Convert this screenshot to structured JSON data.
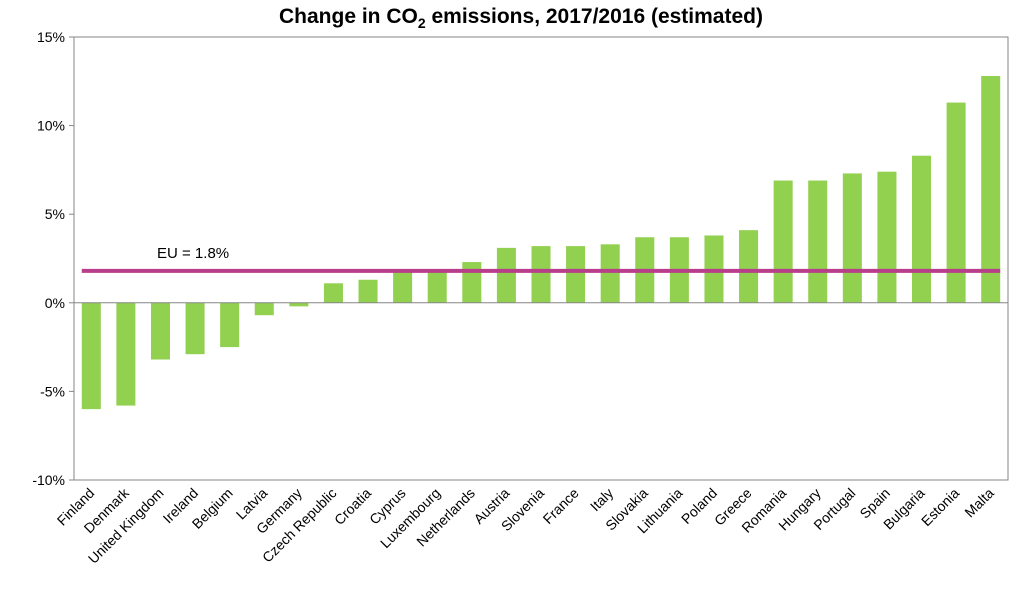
{
  "chart_data": {
    "type": "bar",
    "title": {
      "prefix": "Change in CO",
      "subscript": "2",
      "suffix": " emissions, 2017/2016 (estimated)"
    },
    "xlabel": "",
    "ylabel": "",
    "ylim": [
      -10,
      15
    ],
    "y_ticks": [
      -10,
      -5,
      0,
      5,
      10,
      15
    ],
    "y_tick_labels": [
      "-10%",
      "-5%",
      "0%",
      "5%",
      "10%",
      "15%"
    ],
    "grid": false,
    "categories": [
      "Finland",
      "Denmark",
      "United Kingdom",
      "Ireland",
      "Belgium",
      "Latvia",
      "Germany",
      "Czech Republic",
      "Croatia",
      "Cyprus",
      "Luxembourg",
      "Netherlands",
      "Austria",
      "Slovenia",
      "France",
      "Italy",
      "Slovakia",
      "Lithuania",
      "Poland",
      "Greece",
      "Romania",
      "Hungary",
      "Portugal",
      "Spain",
      "Bulgaria",
      "Estonia",
      "Malta"
    ],
    "values": [
      -6.0,
      -5.8,
      -3.2,
      -2.9,
      -2.5,
      -0.7,
      -0.2,
      1.1,
      1.3,
      1.9,
      1.9,
      2.3,
      3.1,
      3.2,
      3.2,
      3.3,
      3.7,
      3.7,
      3.8,
      4.1,
      6.9,
      6.9,
      7.3,
      7.4,
      8.3,
      11.3,
      12.8
    ],
    "reference_line": {
      "value": 1.8,
      "label": "EU = 1.8%"
    },
    "colors": {
      "bar": "#92D050",
      "reference_line": "#B83D8A",
      "axis": "#868686"
    }
  }
}
